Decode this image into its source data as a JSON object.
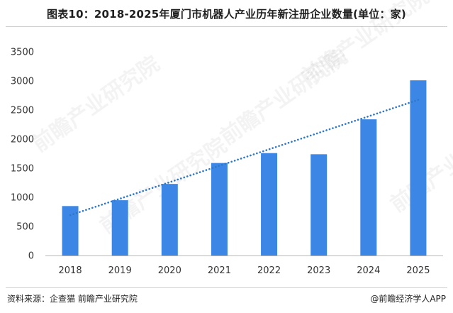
{
  "title": "图表10：2018-2025年厦门市机器人产业历年新注册企业数量(单位：家)",
  "source": "资料来源：企查猫 前瞻产业研究院",
  "credit": "@前瞻经济学人APP",
  "watermark": "前瞻产业研究院",
  "colors": {
    "bar": "#3c87e6",
    "trend": "#2f78c8",
    "axis": "#b5b5b5"
  },
  "chart_data": {
    "type": "bar",
    "title": "图表10：2018-2025年厦门市机器人产业历年新注册企业数量(单位：家)",
    "xlabel": "",
    "ylabel": "",
    "categories": [
      "2018",
      "2019",
      "2020",
      "2021",
      "2022",
      "2023",
      "2024",
      "2025"
    ],
    "values": [
      850,
      950,
      1230,
      1590,
      1760,
      1740,
      2340,
      3010
    ],
    "ylim": [
      0,
      3500
    ],
    "yticks": [
      0,
      500,
      1000,
      1500,
      2000,
      2500,
      3000,
      3500
    ],
    "trendline": {
      "type": "linear",
      "style": "dotted"
    },
    "grid": false,
    "legend": "none"
  }
}
